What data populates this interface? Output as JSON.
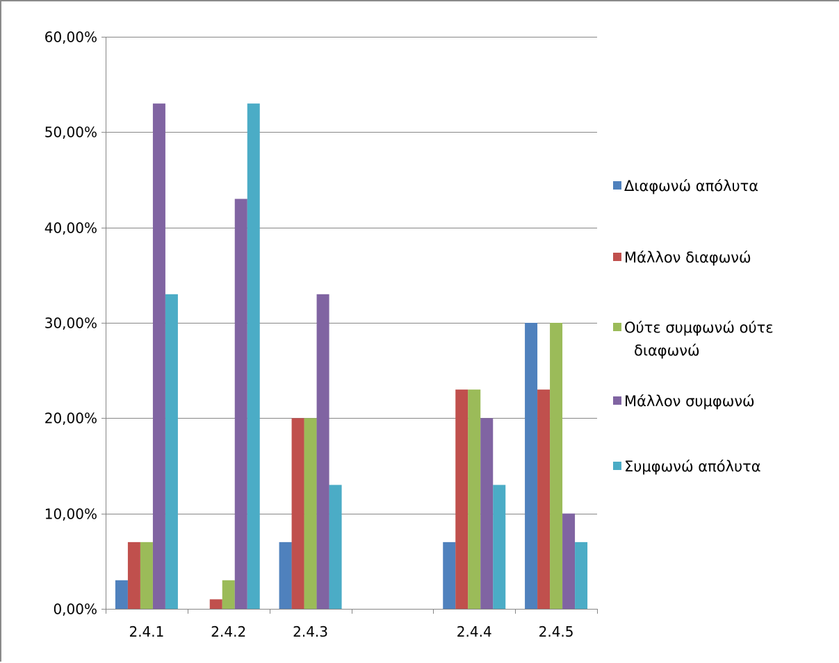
{
  "chart_data": {
    "type": "bar",
    "title": "",
    "xlabel": "",
    "ylabel": "",
    "categories": [
      "2.4.1",
      "2.4.2",
      "2.4.3",
      "",
      "2.4.4",
      "2.4.5"
    ],
    "ylim": [
      0,
      60
    ],
    "yticks": [
      0,
      10,
      20,
      30,
      40,
      50,
      60
    ],
    "ytick_labels": [
      "0,00%",
      "10,00%",
      "20,00%",
      "30,00%",
      "40,00%",
      "50,00%",
      "60,00%"
    ],
    "grid": "horizontal",
    "legend_position": "right",
    "series": [
      {
        "name": "Διαφωνώ απόλυτα",
        "color": "#4F81BD",
        "values": [
          3,
          0,
          7,
          null,
          7,
          30
        ]
      },
      {
        "name": "Μάλλον διαφωνώ",
        "color": "#C0504D",
        "values": [
          7,
          1,
          20,
          null,
          23,
          23
        ]
      },
      {
        "name": "Ούτε συμφωνώ ούτε διαφωνώ",
        "color": "#9BBB59",
        "values": [
          7,
          3,
          20,
          null,
          23,
          30
        ]
      },
      {
        "name": "Μάλλον συμφωνώ",
        "color": "#8064A2",
        "values": [
          53,
          43,
          33,
          null,
          20,
          10
        ]
      },
      {
        "name": "Συμφωνώ απόλυτα",
        "color": "#4BACC6",
        "values": [
          33,
          53,
          13,
          null,
          13,
          7
        ]
      }
    ]
  }
}
